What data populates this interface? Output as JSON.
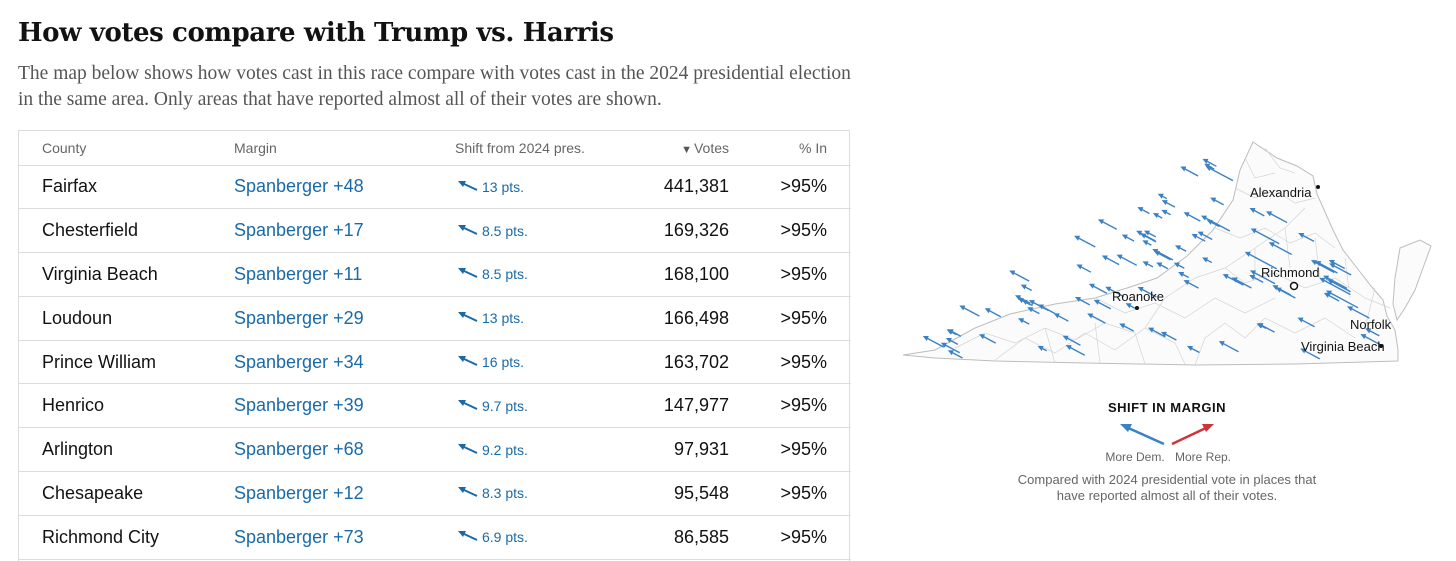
{
  "header": {
    "title": "How votes compare with Trump vs. Harris",
    "description": "The map below shows how votes cast in this race compare with votes cast in the 2024 presidential election in the same area. Only areas that have reported almost all of their votes are shown."
  },
  "table": {
    "columns": {
      "county": "County",
      "margin": "Margin",
      "shift": "Shift from 2024 pres.",
      "votes": "Votes",
      "votes_sort_indicator": "▼",
      "pct_in": "% In"
    },
    "rows": [
      {
        "county": "Fairfax",
        "margin": "Spanberger +48",
        "shift": "13 pts.",
        "votes": "441,381",
        "pct_in": ">95%"
      },
      {
        "county": "Chesterfield",
        "margin": "Spanberger +17",
        "shift": "8.5 pts.",
        "votes": "169,326",
        "pct_in": ">95%"
      },
      {
        "county": "Virginia Beach",
        "margin": "Spanberger +11",
        "shift": "8.5 pts.",
        "votes": "168,100",
        "pct_in": ">95%"
      },
      {
        "county": "Loudoun",
        "margin": "Spanberger +29",
        "shift": "13 pts.",
        "votes": "166,498",
        "pct_in": ">95%"
      },
      {
        "county": "Prince William",
        "margin": "Spanberger +34",
        "shift": "16 pts.",
        "votes": "163,702",
        "pct_in": ">95%"
      },
      {
        "county": "Henrico",
        "margin": "Spanberger +39",
        "shift": "9.7 pts.",
        "votes": "147,977",
        "pct_in": ">95%"
      },
      {
        "county": "Arlington",
        "margin": "Spanberger +68",
        "shift": "9.2 pts.",
        "votes": "97,931",
        "pct_in": ">95%"
      },
      {
        "county": "Chesapeake",
        "margin": "Spanberger +12",
        "shift": "8.3 pts.",
        "votes": "95,548",
        "pct_in": ">95%"
      },
      {
        "county": "Richmond City",
        "margin": "Spanberger +73",
        "shift": "6.9 pts.",
        "votes": "86,585",
        "pct_in": ">95%"
      }
    ]
  },
  "map": {
    "cities": {
      "alexandria": "Alexandria",
      "richmond": "Richmond",
      "roanoke": "Roanoke",
      "norfolk": "Norfolk",
      "virginia_beach": "Virginia Beach"
    }
  },
  "legend": {
    "title": "SHIFT IN MARGIN",
    "dem_label": "More Dem.",
    "rep_label": "More Rep.",
    "note": "Compared with 2024 presidential vote in places that have reported almost all of their votes."
  },
  "colors": {
    "dem": "#3b82c4",
    "rep": "#d0343a",
    "link": "#1a6aa8"
  }
}
